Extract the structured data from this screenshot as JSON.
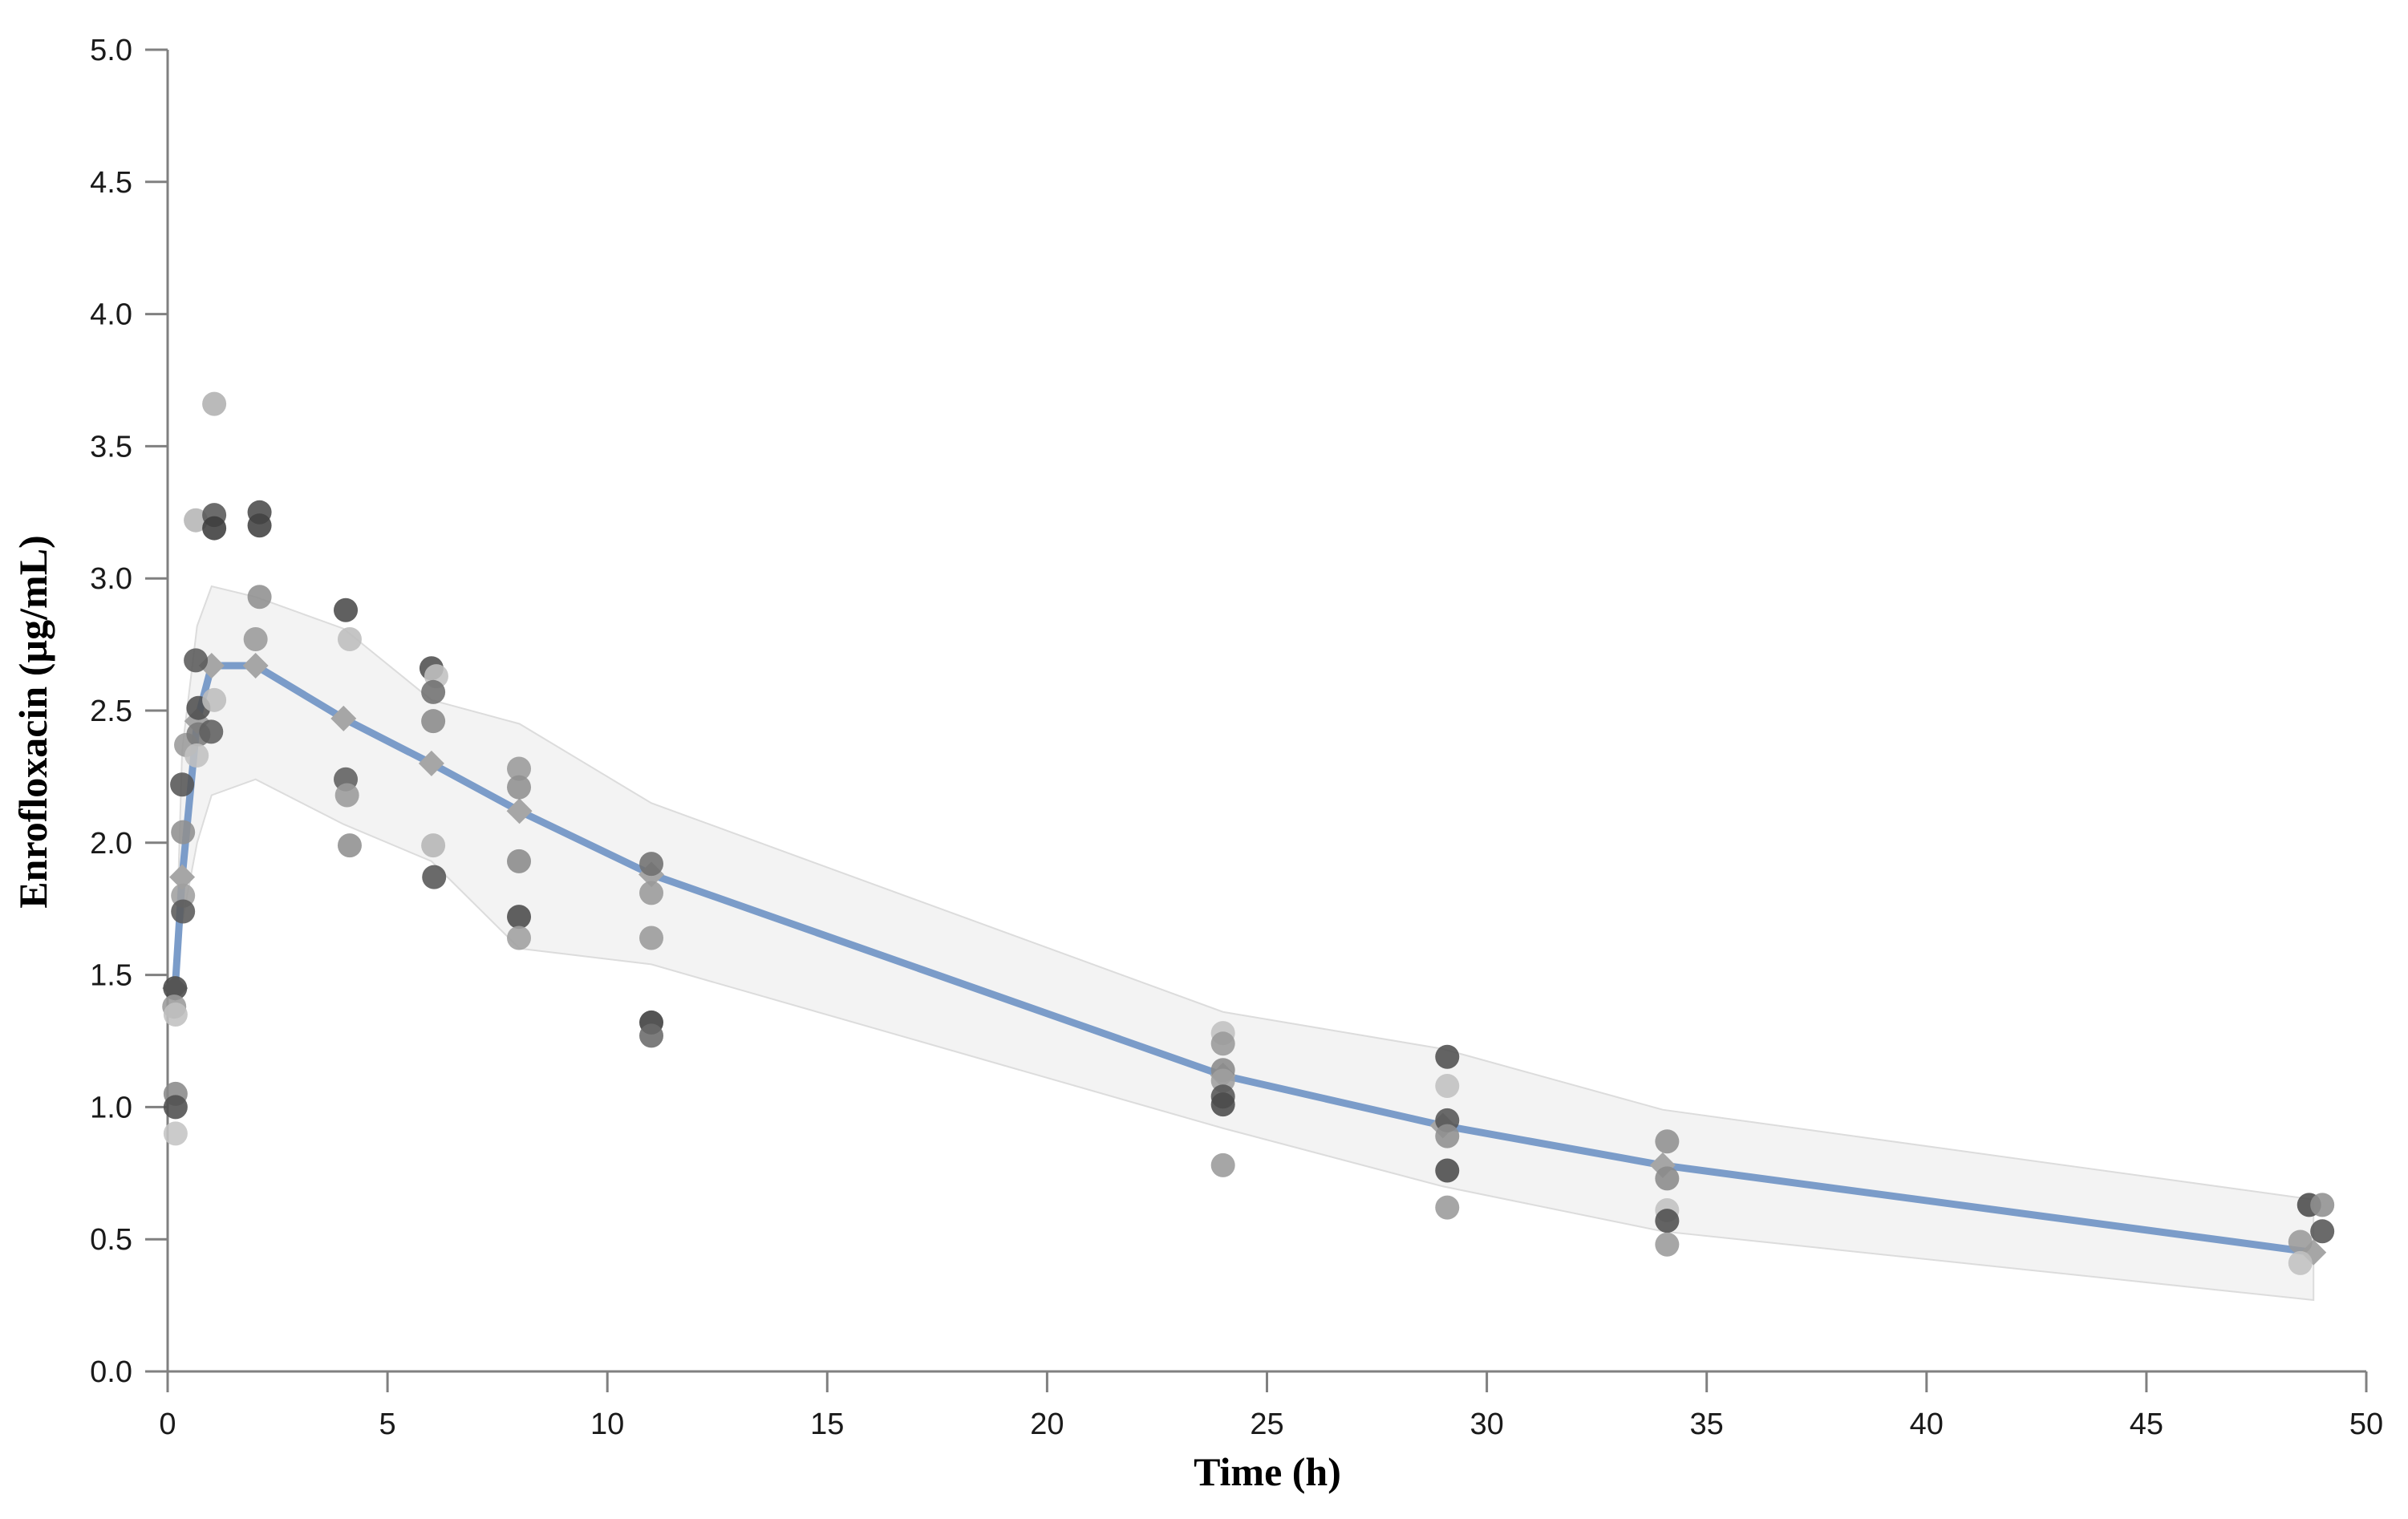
{
  "chart_data": {
    "type": "scatter",
    "title": "",
    "xlabel": "Time (h)",
    "ylabel": "Enrofloxacin (µg/mL)",
    "xlim": [
      0,
      50
    ],
    "ylim": [
      0.0,
      5.0
    ],
    "grid": false,
    "legend": "none",
    "xticks": [
      "0",
      "5",
      "10",
      "15",
      "20",
      "25",
      "30",
      "35",
      "40",
      "45",
      "50"
    ],
    "xtick_values": [
      0,
      5,
      10,
      15,
      20,
      25,
      30,
      35,
      40,
      45,
      50
    ],
    "yticks": [
      "0.0",
      "0.5",
      "1.0",
      "1.5",
      "2.0",
      "2.5",
      "3.0",
      "3.5",
      "4.0",
      "4.5",
      "5.0"
    ],
    "ytick_values": [
      0.0,
      0.5,
      1.0,
      1.5,
      2.0,
      2.5,
      3.0,
      3.5,
      4.0,
      4.5,
      5.0
    ],
    "colors": {
      "mean_line": "#7b9cc9",
      "line_marker": "#a6a6a6",
      "band_fill": "#f2f2f2",
      "band_edge": "#dcdcdc",
      "axis": "#808080",
      "tick_text": "#1a1a1a"
    },
    "mean_line": {
      "name": "Predicted mean concentration",
      "marker": "diamond",
      "points": [
        {
          "t": 0.17,
          "c": 1.45
        },
        {
          "t": 0.33,
          "c": 1.87
        },
        {
          "t": 0.67,
          "c": 2.46
        },
        {
          "t": 1.0,
          "c": 2.67
        },
        {
          "t": 2.0,
          "c": 2.67
        },
        {
          "t": 4.0,
          "c": 2.47
        },
        {
          "t": 6.0,
          "c": 2.3
        },
        {
          "t": 8.0,
          "c": 2.12
        },
        {
          "t": 11.0,
          "c": 1.88
        },
        {
          "t": 24.0,
          "c": 1.12
        },
        {
          "t": 29.0,
          "c": 0.93
        },
        {
          "t": 34.0,
          "c": 0.78
        },
        {
          "t": 48.8,
          "c": 0.45
        }
      ]
    },
    "band": {
      "name": "Prediction interval",
      "points": [
        {
          "t": 0.17,
          "lo": 1.45,
          "hi": 1.45
        },
        {
          "t": 0.33,
          "lo": 1.7,
          "hi": 2.35
        },
        {
          "t": 0.67,
          "lo": 2.0,
          "hi": 2.82
        },
        {
          "t": 1.0,
          "lo": 2.18,
          "hi": 2.97
        },
        {
          "t": 2.0,
          "lo": 2.24,
          "hi": 2.93
        },
        {
          "t": 4.0,
          "lo": 2.07,
          "hi": 2.81
        },
        {
          "t": 6.0,
          "lo": 1.93,
          "hi": 2.54
        },
        {
          "t": 8.0,
          "lo": 1.6,
          "hi": 2.45
        },
        {
          "t": 11.0,
          "lo": 1.54,
          "hi": 2.15
        },
        {
          "t": 24.0,
          "lo": 0.92,
          "hi": 1.36
        },
        {
          "t": 29.0,
          "lo": 0.7,
          "hi": 1.22
        },
        {
          "t": 34.0,
          "lo": 0.53,
          "hi": 0.99
        },
        {
          "t": 48.8,
          "lo": 0.27,
          "hi": 0.65
        }
      ]
    },
    "observations": {
      "name": "Observed concentrations",
      "marker": "circle",
      "points": [
        {
          "t": 0.17,
          "c": 1.45,
          "shade": "#4a4a4a"
        },
        {
          "t": 0.15,
          "c": 1.38,
          "shade": "#9a9a9a"
        },
        {
          "t": 0.18,
          "c": 1.35,
          "shade": "#c0c0c0"
        },
        {
          "t": 0.18,
          "c": 1.05,
          "shade": "#8a8a8a"
        },
        {
          "t": 0.18,
          "c": 1.0,
          "shade": "#4f4f4f"
        },
        {
          "t": 0.18,
          "c": 0.9,
          "shade": "#c4c4c4"
        },
        {
          "t": 0.42,
          "c": 2.37,
          "shade": "#9a9a9a"
        },
        {
          "t": 0.33,
          "c": 2.22,
          "shade": "#555555"
        },
        {
          "t": 0.35,
          "c": 2.04,
          "shade": "#8f8f8f"
        },
        {
          "t": 0.35,
          "c": 1.8,
          "shade": "#9f9f9f"
        },
        {
          "t": 0.35,
          "c": 1.74,
          "shade": "#5a5a5a"
        },
        {
          "t": 0.64,
          "c": 3.22,
          "shade": "#b5b5b5"
        },
        {
          "t": 0.64,
          "c": 2.69,
          "shade": "#5a5a5a"
        },
        {
          "t": 0.7,
          "c": 2.51,
          "shade": "#4f4f4f"
        },
        {
          "t": 0.7,
          "c": 2.41,
          "shade": "#7a7a7a"
        },
        {
          "t": 0.66,
          "c": 2.33,
          "shade": "#c0c0c0"
        },
        {
          "t": 1.06,
          "c": 3.66,
          "shade": "#b0b0b0"
        },
        {
          "t": 1.06,
          "c": 3.24,
          "shade": "#585858"
        },
        {
          "t": 1.06,
          "c": 3.19,
          "shade": "#3c3c3c"
        },
        {
          "t": 1.06,
          "c": 2.54,
          "shade": "#bdbdbd"
        },
        {
          "t": 0.99,
          "c": 2.42,
          "shade": "#5f5f5f"
        },
        {
          "t": 2.09,
          "c": 3.25,
          "shade": "#4a4a4a"
        },
        {
          "t": 2.09,
          "c": 3.2,
          "shade": "#414141"
        },
        {
          "t": 2.09,
          "c": 2.93,
          "shade": "#8f8f8f"
        },
        {
          "t": 2.0,
          "c": 2.77,
          "shade": "#9a9a9a"
        },
        {
          "t": 4.05,
          "c": 2.88,
          "shade": "#4a4a4a"
        },
        {
          "t": 4.14,
          "c": 2.77,
          "shade": "#bdbdbd"
        },
        {
          "t": 4.05,
          "c": 2.24,
          "shade": "#5f5f5f"
        },
        {
          "t": 4.08,
          "c": 2.18,
          "shade": "#9a9a9a"
        },
        {
          "t": 4.14,
          "c": 1.99,
          "shade": "#8f8f8f"
        },
        {
          "t": 6.0,
          "c": 2.66,
          "shade": "#4f4f4f"
        },
        {
          "t": 6.11,
          "c": 2.63,
          "shade": "#c0c0c0"
        },
        {
          "t": 6.04,
          "c": 2.57,
          "shade": "#6f6f6f"
        },
        {
          "t": 6.04,
          "c": 2.46,
          "shade": "#8a8a8a"
        },
        {
          "t": 6.04,
          "c": 1.99,
          "shade": "#b5b5b5"
        },
        {
          "t": 6.06,
          "c": 1.87,
          "shade": "#555555"
        },
        {
          "t": 7.99,
          "c": 2.28,
          "shade": "#9a9a9a"
        },
        {
          "t": 7.99,
          "c": 2.21,
          "shade": "#8f8f8f"
        },
        {
          "t": 7.99,
          "c": 1.93,
          "shade": "#8a8a8a"
        },
        {
          "t": 7.99,
          "c": 1.72,
          "shade": "#4a4a4a"
        },
        {
          "t": 7.99,
          "c": 1.64,
          "shade": "#9f9f9f"
        },
        {
          "t": 11.0,
          "c": 1.92,
          "shade": "#6f6f6f"
        },
        {
          "t": 11.0,
          "c": 1.81,
          "shade": "#9a9a9a"
        },
        {
          "t": 11.0,
          "c": 1.64,
          "shade": "#9a9a9a"
        },
        {
          "t": 11.0,
          "c": 1.32,
          "shade": "#3c3c3c"
        },
        {
          "t": 11.0,
          "c": 1.27,
          "shade": "#6a6a6a"
        },
        {
          "t": 24.0,
          "c": 1.28,
          "shade": "#c0c0c0"
        },
        {
          "t": 24.0,
          "c": 1.24,
          "shade": "#9a9a9a"
        },
        {
          "t": 24.0,
          "c": 1.14,
          "shade": "#8a8a8a"
        },
        {
          "t": 24.0,
          "c": 1.1,
          "shade": "#9f9f9f"
        },
        {
          "t": 24.0,
          "c": 1.04,
          "shade": "#555555"
        },
        {
          "t": 24.0,
          "c": 1.01,
          "shade": "#4a4a4a"
        },
        {
          "t": 24.0,
          "c": 0.78,
          "shade": "#9a9a9a"
        },
        {
          "t": 29.1,
          "c": 1.19,
          "shade": "#4f4f4f"
        },
        {
          "t": 29.1,
          "c": 1.08,
          "shade": "#c0c0c0"
        },
        {
          "t": 29.1,
          "c": 0.95,
          "shade": "#555555"
        },
        {
          "t": 29.1,
          "c": 0.89,
          "shade": "#8f8f8f"
        },
        {
          "t": 29.1,
          "c": 0.76,
          "shade": "#4a4a4a"
        },
        {
          "t": 29.1,
          "c": 0.62,
          "shade": "#9a9a9a"
        },
        {
          "t": 34.1,
          "c": 0.87,
          "shade": "#8f8f8f"
        },
        {
          "t": 34.1,
          "c": 0.73,
          "shade": "#8a8a8a"
        },
        {
          "t": 34.1,
          "c": 0.61,
          "shade": "#c0c0c0"
        },
        {
          "t": 34.1,
          "c": 0.57,
          "shade": "#4f4f4f"
        },
        {
          "t": 34.1,
          "c": 0.48,
          "shade": "#9a9a9a"
        },
        {
          "t": 48.7,
          "c": 0.63,
          "shade": "#4a4a4a"
        },
        {
          "t": 49.0,
          "c": 0.63,
          "shade": "#8f8f8f"
        },
        {
          "t": 49.0,
          "c": 0.53,
          "shade": "#555555"
        },
        {
          "t": 48.5,
          "c": 0.49,
          "shade": "#9a9a9a"
        },
        {
          "t": 48.5,
          "c": 0.41,
          "shade": "#c0c0c0"
        }
      ]
    }
  }
}
